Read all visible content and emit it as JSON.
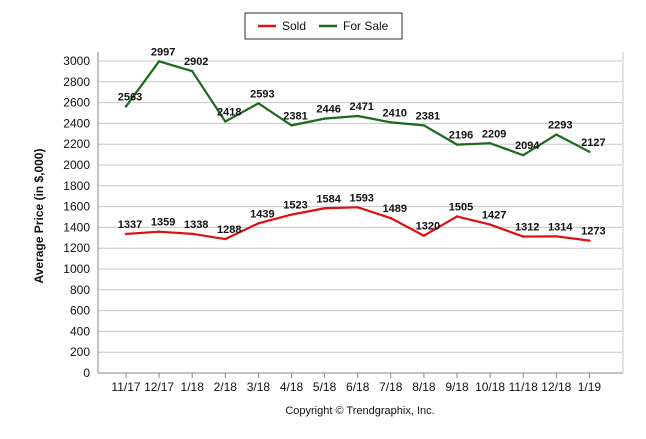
{
  "chart_data": {
    "type": "line",
    "title": "",
    "xlabel": "",
    "ylabel": "Average Price (in $,000)",
    "credit": "Copyright © Trendgraphix, Inc.",
    "categories": [
      "11/17",
      "12/17",
      "1/18",
      "2/18",
      "3/18",
      "4/18",
      "5/18",
      "6/18",
      "7/18",
      "8/18",
      "9/18",
      "10/18",
      "11/18",
      "12/18",
      "1/19"
    ],
    "ylim": [
      0,
      3000
    ],
    "yticks": [
      0,
      200,
      400,
      600,
      800,
      1000,
      1200,
      1400,
      1600,
      1800,
      2000,
      2200,
      2400,
      2600,
      2800,
      3000
    ],
    "grid": true,
    "legend_position": "top-center",
    "series": [
      {
        "name": "Sold",
        "color": "#e01010",
        "values": [
          1337,
          1359,
          1338,
          1288,
          1439,
          1523,
          1584,
          1593,
          1489,
          1320,
          1505,
          1427,
          1312,
          1314,
          1273
        ]
      },
      {
        "name": "For Sale",
        "color": "#1a6b1a",
        "values": [
          2563,
          2997,
          2902,
          2418,
          2593,
          2381,
          2446,
          2471,
          2410,
          2381,
          2196,
          2209,
          2094,
          2293,
          2127
        ]
      }
    ]
  }
}
